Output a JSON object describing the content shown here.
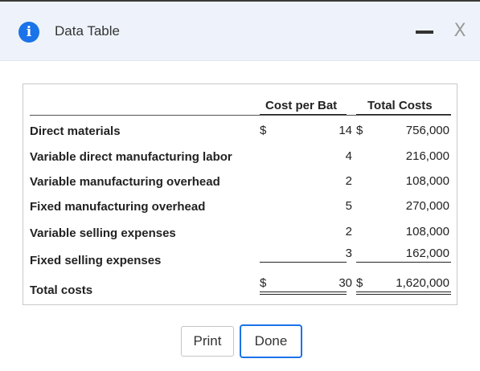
{
  "dialog": {
    "title": "Data Table",
    "info_icon_glyph": "i",
    "close_glyph": "X",
    "icons": [
      "info-icon",
      "minimize-icon",
      "close-icon"
    ]
  },
  "table": {
    "headers": {
      "cost_per_bat": "Cost per Bat",
      "total_costs": "Total Costs"
    },
    "rows": [
      {
        "label": "Direct materials",
        "dollar1": "$",
        "cost_per_bat": "14",
        "dollar2": "$",
        "total_costs": "756,000"
      },
      {
        "label": "Variable direct manufacturing labor",
        "dollar1": "",
        "cost_per_bat": "4",
        "dollar2": "",
        "total_costs": "216,000"
      },
      {
        "label": "Variable manufacturing overhead",
        "dollar1": "",
        "cost_per_bat": "2",
        "dollar2": "",
        "total_costs": "108,000"
      },
      {
        "label": "Fixed manufacturing overhead",
        "dollar1": "",
        "cost_per_bat": "5",
        "dollar2": "",
        "total_costs": "270,000"
      },
      {
        "label": "Variable selling expenses",
        "dollar1": "",
        "cost_per_bat": "2",
        "dollar2": "",
        "total_costs": "108,000"
      },
      {
        "label": "Fixed selling expenses",
        "dollar1": "",
        "cost_per_bat": "3",
        "dollar2": "",
        "total_costs": "162,000"
      }
    ],
    "total": {
      "label": "Total costs",
      "dollar1": "$",
      "cost_per_bat": "30",
      "dollar2": "$",
      "total_costs": "1,620,000"
    }
  },
  "buttons": {
    "print": "Print",
    "done": "Done"
  }
}
